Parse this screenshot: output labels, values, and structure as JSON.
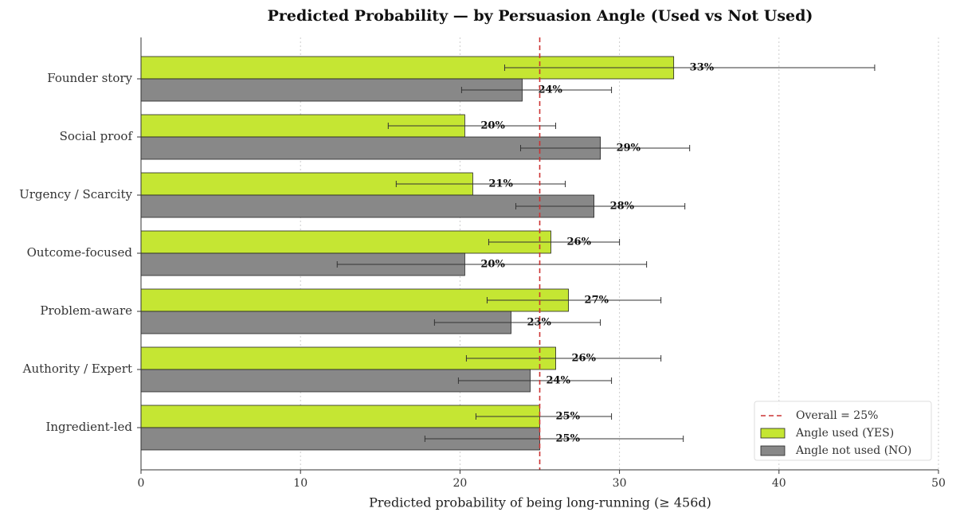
{
  "chart_data": {
    "type": "bar",
    "orientation": "horizontal",
    "title": "Predicted Probability — by Persuasion Angle (Used vs Not Used)",
    "x_label": "Predicted probability of being long-running (≥ 456d)",
    "categories": [
      "Founder story",
      "Social proof",
      "Urgency / Scarcity",
      "Outcome-focused",
      "Problem-aware",
      "Authority / Expert",
      "Ingredient-led"
    ],
    "series": [
      {
        "name": "Angle used (YES)",
        "color": "#c5e633",
        "values": [
          33.4,
          20.3,
          20.8,
          25.7,
          26.8,
          26.0,
          25.0
        ],
        "value_labels": [
          "33%",
          "20%",
          "21%",
          "26%",
          "27%",
          "26%",
          "25%"
        ],
        "error_low": [
          22.8,
          15.5,
          16.0,
          21.8,
          21.7,
          20.4,
          21.0
        ],
        "error_high": [
          46.0,
          26.0,
          26.6,
          30.0,
          32.6,
          32.6,
          29.5
        ]
      },
      {
        "name": "Angle not used (NO)",
        "color": "#888888",
        "values": [
          23.9,
          28.8,
          28.4,
          20.3,
          23.2,
          24.4,
          25.0
        ],
        "value_labels": [
          "24%",
          "29%",
          "28%",
          "20%",
          "23%",
          "24%",
          "25%"
        ],
        "error_low": [
          20.1,
          23.8,
          23.5,
          12.3,
          18.4,
          19.9,
          17.8
        ],
        "error_high": [
          29.5,
          34.4,
          34.1,
          31.7,
          28.8,
          29.5,
          34.0
        ]
      }
    ],
    "reference_line": {
      "value": 25,
      "label": "Overall = 25%",
      "color": "#cc3333"
    },
    "xlim": [
      0,
      50
    ],
    "xticks": [
      0,
      10,
      20,
      30,
      40,
      50
    ],
    "grid": true,
    "legend": "lower right"
  }
}
